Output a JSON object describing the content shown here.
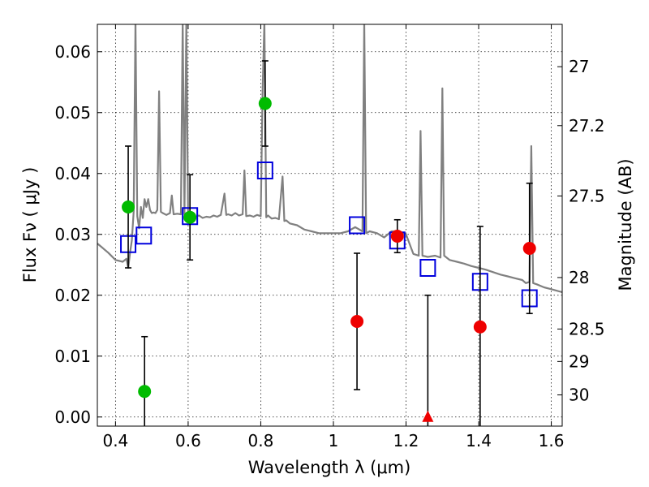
{
  "chart_data": {
    "type": "scatter",
    "title": "",
    "xlabel": "Wavelength  λ (μm)",
    "ylabel": "Flux  Fν  ( μJy )",
    "y2label": "Magnitude (AB)",
    "xlim": [
      0.35,
      1.63
    ],
    "ylim": [
      -0.0015,
      0.0645
    ],
    "grid": true,
    "xticks": [
      {
        "v": 0.4,
        "label": "0.4"
      },
      {
        "v": 0.6,
        "label": "0.6"
      },
      {
        "v": 0.8,
        "label": "0.8"
      },
      {
        "v": 1.0,
        "label": "1"
      },
      {
        "v": 1.2,
        "label": "1.2"
      },
      {
        "v": 1.4,
        "label": "1.4"
      },
      {
        "v": 1.6,
        "label": "1.6"
      }
    ],
    "yticks": [
      {
        "v": 0.0,
        "label": "0.00"
      },
      {
        "v": 0.01,
        "label": "0.01"
      },
      {
        "v": 0.02,
        "label": "0.02"
      },
      {
        "v": 0.03,
        "label": "0.03"
      },
      {
        "v": 0.04,
        "label": "0.04"
      },
      {
        "v": 0.05,
        "label": "0.05"
      },
      {
        "v": 0.06,
        "label": "0.06"
      }
    ],
    "magnitude_ticks": [
      {
        "mag": 27,
        "label": "27"
      },
      {
        "mag": 27.2,
        "label": "27.2"
      },
      {
        "mag": 27.5,
        "label": "27.5"
      },
      {
        "mag": 28,
        "label": "28"
      },
      {
        "mag": 28.5,
        "label": "28.5"
      },
      {
        "mag": 29,
        "label": "29"
      },
      {
        "mag": 30,
        "label": "30"
      }
    ],
    "series": [
      {
        "name": "model_spectrum",
        "kind": "line",
        "color": "#808080",
        "x": [
          0.35,
          0.38,
          0.4,
          0.42,
          0.43,
          0.435,
          0.44,
          0.445,
          0.45,
          0.455,
          0.46,
          0.465,
          0.47,
          0.475,
          0.48,
          0.485,
          0.49,
          0.495,
          0.5,
          0.505,
          0.51,
          0.515,
          0.52,
          0.525,
          0.53,
          0.54,
          0.55,
          0.555,
          0.56,
          0.57,
          0.58,
          0.585,
          0.59,
          0.595,
          0.6,
          0.605,
          0.61,
          0.62,
          0.63,
          0.64,
          0.65,
          0.66,
          0.67,
          0.68,
          0.69,
          0.7,
          0.705,
          0.71,
          0.72,
          0.73,
          0.74,
          0.75,
          0.755,
          0.76,
          0.77,
          0.78,
          0.79,
          0.8,
          0.805,
          0.81,
          0.815,
          0.82,
          0.83,
          0.84,
          0.85,
          0.86,
          0.865,
          0.87,
          0.88,
          0.9,
          0.92,
          0.94,
          0.96,
          0.98,
          1.0,
          1.02,
          1.04,
          1.06,
          1.08,
          1.085,
          1.09,
          1.1,
          1.12,
          1.14,
          1.16,
          1.18,
          1.2,
          1.22,
          1.235,
          1.24,
          1.245,
          1.26,
          1.28,
          1.295,
          1.3,
          1.305,
          1.32,
          1.34,
          1.36,
          1.38,
          1.4,
          1.42,
          1.44,
          1.46,
          1.48,
          1.5,
          1.52,
          1.53,
          1.54,
          1.545,
          1.55,
          1.56,
          1.58,
          1.6,
          1.63
        ],
        "y": [
          0.0285,
          0.027,
          0.0258,
          0.0255,
          0.026,
          0.0245,
          0.027,
          0.029,
          0.0338,
          0.065,
          0.033,
          0.031,
          0.0345,
          0.0327,
          0.0358,
          0.0345,
          0.0358,
          0.034,
          0.0335,
          0.0336,
          0.0335,
          0.034,
          0.0535,
          0.0337,
          0.0335,
          0.0332,
          0.0335,
          0.0364,
          0.0333,
          0.0334,
          0.0333,
          0.065,
          0.0333,
          0.065,
          0.0328,
          0.0332,
          0.033,
          0.0329,
          0.0331,
          0.0327,
          0.0329,
          0.0328,
          0.0331,
          0.0329,
          0.0332,
          0.0367,
          0.0332,
          0.0333,
          0.0331,
          0.0335,
          0.0331,
          0.0333,
          0.0405,
          0.033,
          0.0331,
          0.0329,
          0.0332,
          0.033,
          0.0535,
          0.065,
          0.0328,
          0.0331,
          0.0326,
          0.0327,
          0.0325,
          0.0395,
          0.0322,
          0.0323,
          0.0318,
          0.0315,
          0.0308,
          0.0305,
          0.0302,
          0.0302,
          0.0302,
          0.0302,
          0.0305,
          0.0312,
          0.0305,
          0.065,
          0.0302,
          0.0305,
          0.0302,
          0.0295,
          0.0305,
          0.0305,
          0.03,
          0.0268,
          0.0265,
          0.047,
          0.0265,
          0.0263,
          0.0265,
          0.0262,
          0.054,
          0.0265,
          0.0258,
          0.0255,
          0.0252,
          0.0248,
          0.0245,
          0.0242,
          0.0238,
          0.0234,
          0.0231,
          0.0228,
          0.0225,
          0.022,
          0.0222,
          0.0445,
          0.022,
          0.0218,
          0.0213,
          0.021,
          0.0205
        ]
      },
      {
        "name": "model_photometry",
        "kind": "open-square",
        "color": "#0000dd",
        "x": [
          0.435,
          0.478,
          0.605,
          0.812,
          1.065,
          1.176,
          1.26,
          1.404,
          1.54
        ],
        "y": [
          0.0284,
          0.0298,
          0.033,
          0.0405,
          0.0315,
          0.029,
          0.0245,
          0.0222,
          0.0195
        ]
      },
      {
        "name": "detections",
        "kind": "filled-circle",
        "color": "#00bb00",
        "x": [
          0.435,
          0.48,
          0.605,
          0.812
        ],
        "y": [
          0.0345,
          0.0042,
          0.0328,
          0.0515
        ],
        "yerr": [
          0.01,
          0.009,
          0.007,
          0.007
        ]
      },
      {
        "name": "weak_detections",
        "kind": "filled-circle",
        "color": "#ee0000",
        "x": [
          1.065,
          1.176,
          1.404,
          1.54
        ],
        "y": [
          0.0157,
          0.0297,
          0.0148,
          0.0277
        ],
        "yerr": [
          0.0112,
          0.0027,
          0.0165,
          0.0107
        ]
      },
      {
        "name": "upper_limit",
        "kind": "triangle",
        "color": "#ee0000",
        "x": [
          1.26
        ],
        "y": [
          0.0
        ],
        "yerr": [
          0.02
        ]
      }
    ]
  }
}
